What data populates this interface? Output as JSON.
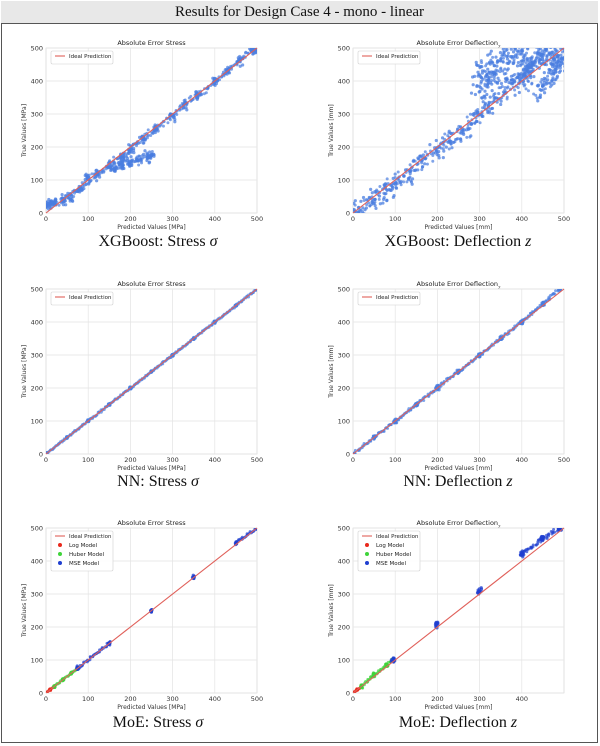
{
  "header": {
    "title": "Results for Design Case 4 - mono - linear"
  },
  "captions": [
    {
      "text": "XGBoost: Stress ",
      "symbol": "σ"
    },
    {
      "text": "XGBoost: Deflection ",
      "symbol": "z"
    },
    {
      "text": "NN: Stress ",
      "symbol": "σ"
    },
    {
      "text": "NN: Deflection ",
      "symbol": "z"
    },
    {
      "text": "MoE: Stress ",
      "symbol": "σ"
    },
    {
      "text": "MoE: Deflection ",
      "symbol": "z"
    }
  ],
  "colors": {
    "ideal_line": "#e0605a",
    "scatter_blue": "#4a7ee0",
    "log_model": "#e8291c",
    "huber_model": "#3fd43a",
    "mse_model": "#1f3fd0",
    "grid": "#e3e3e3"
  },
  "chart_data": [
    {
      "type": "scatter",
      "title": "Absolute Error Stress",
      "xlabel": "Predicted Values [MPa]",
      "ylabel": "True Values [MPa]",
      "xlim": [
        0,
        500
      ],
      "ylim": [
        0,
        500
      ],
      "xticks": [
        0,
        100,
        200,
        300,
        400,
        500
      ],
      "yticks": [
        0,
        100,
        200,
        300,
        400,
        500
      ],
      "grid": true,
      "legend": [
        "Ideal Prediction"
      ],
      "legend_position": "upper-left",
      "ideal_line": [
        [
          0,
          0
        ],
        [
          500,
          500
        ]
      ],
      "series": [
        {
          "color_key": "scatter_blue",
          "spread": 12,
          "points": [
            [
              0,
              20
            ],
            [
              10,
              25
            ],
            [
              20,
              30
            ],
            [
              40,
              40
            ],
            [
              60,
              50
            ],
            [
              80,
              75
            ],
            [
              100,
              100
            ],
            [
              120,
              115
            ],
            [
              150,
              145
            ],
            [
              180,
              170
            ],
            [
              200,
              195
            ],
            [
              230,
              225
            ],
            [
              260,
              255
            ],
            [
              300,
              295
            ],
            [
              330,
              330
            ],
            [
              360,
              355
            ],
            [
              400,
              400
            ],
            [
              430,
              430
            ],
            [
              460,
              460
            ],
            [
              490,
              495
            ],
            [
              500,
              500
            ],
            [
              160,
              135
            ],
            [
              180,
              145
            ],
            [
              200,
              155
            ],
            [
              220,
              160
            ],
            [
              240,
              170
            ],
            [
              250,
              175
            ]
          ]
        }
      ]
    },
    {
      "type": "scatter",
      "title": "Absolute Error Deflection",
      "title_subscript": "z",
      "xlabel": "Predicted Values [mm]",
      "ylabel": "True Values [mm]",
      "xlim": [
        0,
        500
      ],
      "ylim": [
        0,
        500
      ],
      "xticks": [
        0,
        100,
        200,
        300,
        400,
        500
      ],
      "yticks": [
        0,
        100,
        200,
        300,
        400,
        500
      ],
      "grid": true,
      "legend": [
        "Ideal Prediction"
      ],
      "legend_position": "upper-left",
      "ideal_line": [
        [
          0,
          0
        ],
        [
          500,
          500
        ]
      ],
      "series": [
        {
          "color_key": "scatter_blue",
          "spread": 28,
          "points": [
            [
              0,
              15
            ],
            [
              20,
              20
            ],
            [
              50,
              40
            ],
            [
              80,
              70
            ],
            [
              100,
              90
            ],
            [
              130,
              120
            ],
            [
              160,
              150
            ],
            [
              200,
              190
            ],
            [
              230,
              220
            ],
            [
              260,
              250
            ],
            [
              290,
              290
            ],
            [
              320,
              330
            ],
            [
              350,
              360
            ],
            [
              380,
              390
            ],
            [
              400,
              420
            ],
            [
              420,
              440
            ],
            [
              450,
              460
            ],
            [
              480,
              490
            ],
            [
              500,
              500
            ],
            [
              300,
              430
            ],
            [
              330,
              450
            ],
            [
              360,
              470
            ],
            [
              380,
              480
            ],
            [
              400,
              490
            ],
            [
              420,
              430
            ],
            [
              440,
              470
            ],
            [
              460,
              480
            ],
            [
              300,
              380
            ],
            [
              320,
              400
            ],
            [
              340,
              420
            ],
            [
              450,
              380
            ],
            [
              470,
              420
            ],
            [
              480,
              450
            ],
            [
              490,
              470
            ]
          ]
        }
      ]
    },
    {
      "type": "scatter",
      "title": "Absolute Error Stress",
      "xlabel": "Predicted Values [MPa]",
      "ylabel": "True Values [MPa]",
      "xlim": [
        0,
        500
      ],
      "ylim": [
        0,
        500
      ],
      "xticks": [
        0,
        100,
        200,
        300,
        400,
        500
      ],
      "yticks": [
        0,
        100,
        200,
        300,
        400,
        500
      ],
      "grid": true,
      "legend": [
        "Ideal Prediction"
      ],
      "legend_position": "upper-left",
      "ideal_line": [
        [
          0,
          0
        ],
        [
          500,
          500
        ]
      ],
      "series": [
        {
          "color_key": "scatter_blue",
          "spread": 3,
          "points": [
            [
              0,
              0
            ],
            [
              50,
              50
            ],
            [
              100,
              100
            ],
            [
              150,
              150
            ],
            [
              200,
              200
            ],
            [
              250,
              250
            ],
            [
              300,
              300
            ],
            [
              350,
              350
            ],
            [
              400,
              400
            ],
            [
              450,
              450
            ],
            [
              500,
              500
            ]
          ]
        }
      ]
    },
    {
      "type": "scatter",
      "title": "Absolute Error Deflection",
      "title_subscript": "z",
      "xlabel": "Predicted Values [mm]",
      "ylabel": "True Values [mm]",
      "xlim": [
        0,
        500
      ],
      "ylim": [
        0,
        500
      ],
      "xticks": [
        0,
        100,
        200,
        300,
        400,
        500
      ],
      "yticks": [
        0,
        100,
        200,
        300,
        400,
        500
      ],
      "grid": true,
      "legend": [
        "Ideal Prediction"
      ],
      "legend_position": "upper-left",
      "ideal_line": [
        [
          0,
          0
        ],
        [
          500,
          500
        ]
      ],
      "series": [
        {
          "color_key": "scatter_blue",
          "spread": 5,
          "points": [
            [
              0,
              0
            ],
            [
              50,
              50
            ],
            [
              100,
              100
            ],
            [
              150,
              150
            ],
            [
              200,
              200
            ],
            [
              250,
              250
            ],
            [
              300,
              300
            ],
            [
              350,
              350
            ],
            [
              400,
              400
            ],
            [
              450,
              455
            ],
            [
              490,
              500
            ]
          ]
        }
      ]
    },
    {
      "type": "scatter",
      "title": "Absolute Error Stress",
      "xlabel": "Predicted Values [MPa]",
      "ylabel": "True Values [MPa]",
      "xlim": [
        0,
        500
      ],
      "ylim": [
        0,
        500
      ],
      "xticks": [
        0,
        100,
        200,
        300,
        400,
        500
      ],
      "yticks": [
        0,
        100,
        200,
        300,
        400,
        500
      ],
      "grid": true,
      "legend": [
        "Ideal Prediction",
        "Log Model",
        "Huber Model",
        "MSE Model"
      ],
      "legend_position": "upper-left",
      "ideal_line": [
        [
          0,
          0
        ],
        [
          500,
          500
        ]
      ],
      "series": [
        {
          "name": "Log Model",
          "color_key": "log_model",
          "spread": 2,
          "points": [
            [
              0,
              0
            ],
            [
              10,
              10
            ],
            [
              20,
              20
            ]
          ]
        },
        {
          "name": "Huber Model",
          "color_key": "huber_model",
          "spread": 3,
          "points": [
            [
              20,
              20
            ],
            [
              40,
              40
            ],
            [
              60,
              60
            ],
            [
              75,
              75
            ]
          ]
        },
        {
          "name": "MSE Model",
          "color_key": "mse_model",
          "spread": 4,
          "points": [
            [
              75,
              75
            ],
            [
              150,
              150
            ],
            [
              250,
              250
            ],
            [
              350,
              350
            ],
            [
              450,
              455
            ],
            [
              500,
              500
            ]
          ]
        }
      ]
    },
    {
      "type": "scatter",
      "title": "Absolute Error Deflection",
      "title_subscript": "z",
      "xlabel": "Predicted Values [mm]",
      "ylabel": "True Values [mm]",
      "xlim": [
        0,
        500
      ],
      "ylim": [
        0,
        500
      ],
      "xticks": [
        0,
        100,
        200,
        300,
        400
      ],
      "yticks": [
        0,
        100,
        200,
        300,
        400,
        500
      ],
      "grid": true,
      "legend": [
        "Ideal Prediction",
        "Log Model",
        "Huber Model",
        "MSE Model"
      ],
      "legend_position": "upper-left",
      "ideal_line": [
        [
          0,
          0
        ],
        [
          500,
          500
        ]
      ],
      "series": [
        {
          "name": "Log Model",
          "color_key": "log_model",
          "spread": 2,
          "points": [
            [
              0,
              0
            ],
            [
              10,
              10
            ],
            [
              20,
              20
            ]
          ]
        },
        {
          "name": "Huber Model",
          "color_key": "huber_model",
          "spread": 4,
          "points": [
            [
              20,
              20
            ],
            [
              50,
              55
            ],
            [
              80,
              85
            ],
            [
              95,
              100
            ]
          ]
        },
        {
          "name": "MSE Model",
          "color_key": "mse_model",
          "spread": 8,
          "points": [
            [
              95,
              100
            ],
            [
              200,
              210
            ],
            [
              300,
              310
            ],
            [
              400,
              420
            ],
            [
              450,
              470
            ],
            [
              490,
              500
            ]
          ]
        }
      ]
    }
  ]
}
